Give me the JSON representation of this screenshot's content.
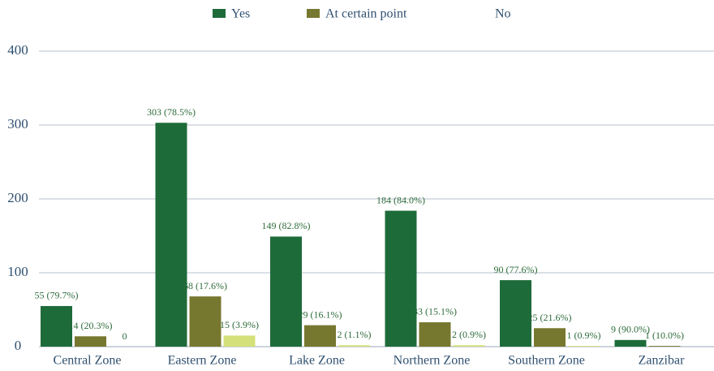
{
  "chart_data": {
    "type": "bar",
    "categories": [
      "Central Zone",
      "Eastern Zone",
      "Lake Zone",
      "Northern Zone",
      "Southern Zone",
      "Zanzibar"
    ],
    "series": [
      {
        "name": "Yes",
        "color": "#1e6b3a",
        "values": [
          55,
          303,
          149,
          184,
          90,
          9
        ],
        "value_labels": [
          "55 (79.7%)",
          "303 (78.5%)",
          "149 (82.8%)",
          "184 (84.0%)",
          "90 (77.6%)",
          "9 (90.0%)"
        ]
      },
      {
        "name": "At certain point",
        "color": "#77782f",
        "values": [
          14,
          68,
          29,
          33,
          25,
          1
        ],
        "value_labels": [
          "14 (20.3%)",
          "68 (17.6%)",
          "29 (16.1%)",
          "33 (15.1%)",
          "25 (21.6%)",
          "1 (10.0%)"
        ]
      },
      {
        "name": "No",
        "color": "#d4e07a",
        "values": [
          0,
          15,
          2,
          2,
          1,
          0
        ],
        "value_labels": [
          "0",
          "15 (3.9%)",
          "2 (1.1%)",
          "2 (0.9%)",
          "1 (0.9%)",
          null
        ]
      }
    ],
    "ylim": [
      0,
      400
    ],
    "yticks": [
      0,
      100,
      200,
      300,
      400
    ],
    "grid": true,
    "legend": "top"
  }
}
